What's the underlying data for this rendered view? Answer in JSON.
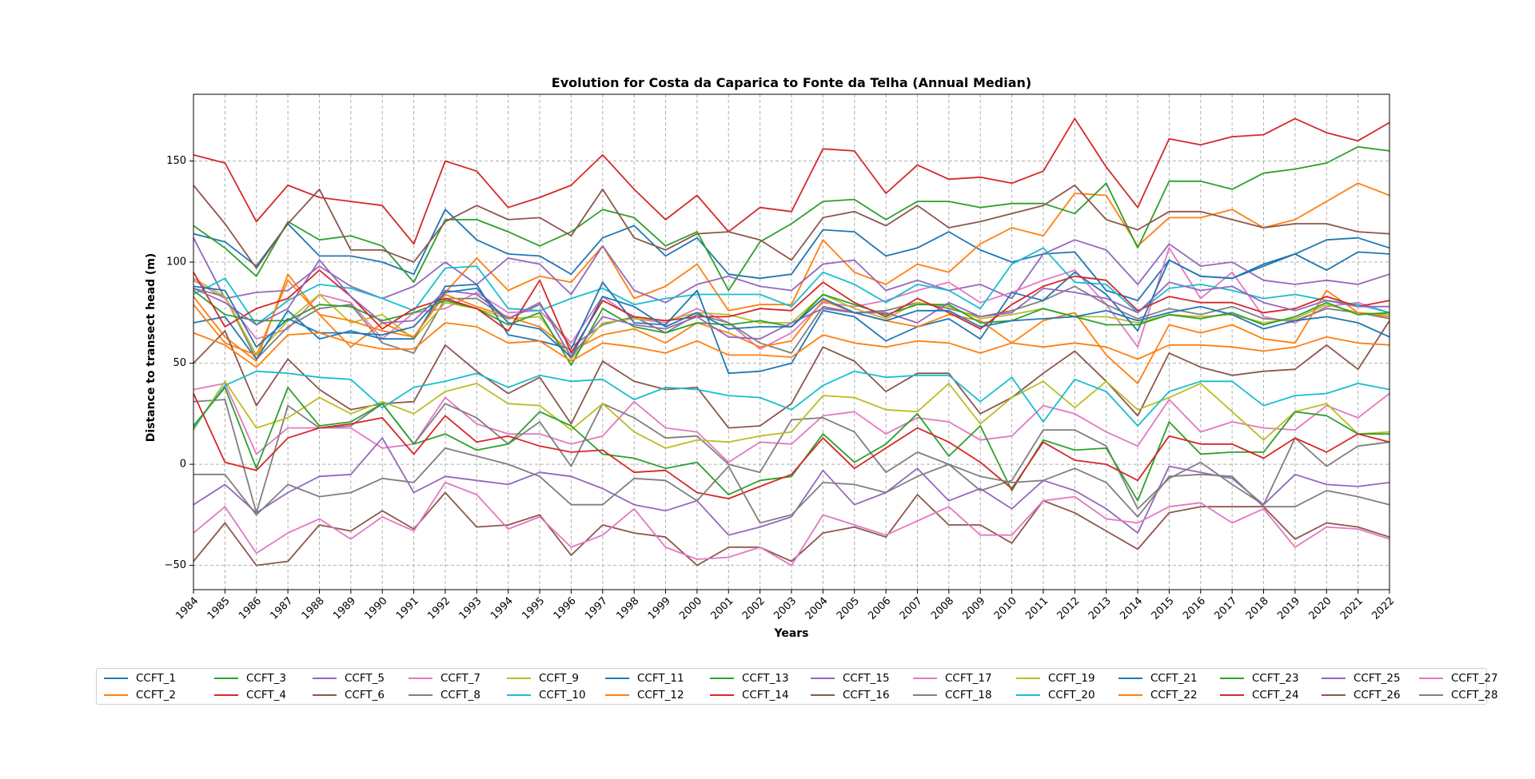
{
  "chart_data": {
    "type": "line",
    "title": "Evolution for Costa da Caparica to Fonte da Telha (Annual Median)",
    "xlabel": "Years",
    "ylabel": "Distance to transect head (m)",
    "ylim": [
      -62,
      183
    ],
    "yticks": [
      -50,
      0,
      50,
      100,
      150
    ],
    "grid": true,
    "legend_position": "bottom",
    "x": [
      1984,
      1985,
      1986,
      1987,
      1988,
      1989,
      1990,
      1991,
      1992,
      1993,
      1994,
      1995,
      1996,
      1997,
      1998,
      1999,
      2000,
      2001,
      2002,
      2003,
      2004,
      2005,
      2006,
      2007,
      2008,
      2009,
      2010,
      2011,
      2012,
      2013,
      2014,
      2015,
      2016,
      2017,
      2018,
      2019,
      2020,
      2021,
      2022
    ],
    "series": [
      {
        "name": "CCFT_1",
        "color": "#1f77b4",
        "values": [
          114,
          110,
          98,
          119,
          103,
          103,
          100,
          94,
          126,
          111,
          104,
          103,
          94,
          112,
          118,
          103,
          112,
          94,
          92,
          94,
          116,
          115,
          103,
          107,
          115,
          106,
          100,
          104,
          105,
          86,
          81,
          101,
          93,
          92,
          99,
          104,
          111,
          112,
          107
        ]
      },
      {
        "name": "CCFT_2",
        "color": "#ff7f0e",
        "values": [
          83,
          63,
          51,
          94,
          74,
          58,
          70,
          63,
          85,
          102,
          86,
          93,
          90,
          108,
          82,
          88,
          99,
          76,
          79,
          79,
          111,
          95,
          89,
          99,
          95,
          109,
          117,
          113,
          134,
          133,
          108,
          122,
          122,
          126,
          117,
          121,
          130,
          139,
          133
        ]
      },
      {
        "name": "CCFT_3",
        "color": "#2ca02c",
        "values": [
          118,
          107,
          93,
          120,
          111,
          113,
          108,
          90,
          121,
          121,
          115,
          108,
          115,
          126,
          122,
          108,
          115,
          86,
          110,
          119,
          130,
          131,
          121,
          130,
          130,
          127,
          129,
          129,
          124,
          139,
          107,
          140,
          140,
          136,
          144,
          146,
          149,
          157,
          155
        ]
      },
      {
        "name": "CCFT_4",
        "color": "#d62728",
        "values": [
          153,
          149,
          120,
          138,
          132,
          130,
          128,
          109,
          150,
          145,
          127,
          132,
          138,
          153,
          136,
          121,
          133,
          115,
          127,
          125,
          156,
          155,
          134,
          148,
          141,
          142,
          139,
          145,
          171,
          147,
          127,
          161,
          158,
          162,
          163,
          171,
          164,
          160,
          169
        ]
      },
      {
        "name": "CCFT_5",
        "color": "#9467bd",
        "values": [
          112,
          82,
          85,
          86,
          98,
          88,
          82,
          88,
          100,
          89,
          102,
          99,
          84,
          108,
          86,
          80,
          89,
          93,
          88,
          86,
          99,
          101,
          86,
          91,
          86,
          89,
          82,
          104,
          111,
          106,
          89,
          109,
          98,
          100,
          91,
          89,
          91,
          89,
          94
        ]
      },
      {
        "name": "CCFT_6",
        "color": "#8c564b",
        "values": [
          138,
          119,
          97,
          119,
          136,
          106,
          106,
          100,
          120,
          128,
          121,
          122,
          113,
          136,
          112,
          106,
          114,
          115,
          111,
          101,
          122,
          125,
          118,
          128,
          117,
          120,
          124,
          128,
          138,
          121,
          116,
          125,
          125,
          121,
          117,
          119,
          119,
          115,
          114
        ]
      },
      {
        "name": "CCFT_7",
        "color": "#e377c2",
        "values": [
          91,
          82,
          62,
          67,
          84,
          80,
          62,
          75,
          77,
          85,
          75,
          76,
          60,
          83,
          72,
          70,
          77,
          70,
          57,
          65,
          80,
          78,
          81,
          86,
          90,
          80,
          85,
          91,
          96,
          79,
          58,
          107,
          82,
          95,
          73,
          70,
          78,
          80,
          75
        ]
      },
      {
        "name": "CCFT_8",
        "color": "#7f7f7f",
        "values": [
          87,
          83,
          52,
          68,
          77,
          79,
          60,
          55,
          82,
          82,
          72,
          79,
          58,
          69,
          73,
          65,
          74,
          70,
          60,
          55,
          78,
          75,
          76,
          80,
          77,
          73,
          76,
          81,
          88,
          79,
          72,
          77,
          74,
          78,
          72,
          71,
          77,
          75,
          72
        ]
      },
      {
        "name": "CCFT_9",
        "color": "#bcbd22",
        "values": [
          92,
          83,
          54,
          71,
          84,
          70,
          74,
          62,
          80,
          77,
          72,
          73,
          52,
          70,
          72,
          71,
          75,
          74,
          70,
          70,
          84,
          77,
          72,
          80,
          78,
          72,
          74,
          77,
          73,
          73,
          70,
          74,
          73,
          74,
          70,
          72,
          79,
          75,
          74
        ]
      },
      {
        "name": "CCFT_10",
        "color": "#17becf",
        "values": [
          84,
          92,
          69,
          81,
          89,
          87,
          82,
          76,
          97,
          98,
          77,
          76,
          82,
          87,
          79,
          82,
          84,
          84,
          84,
          78,
          95,
          89,
          80,
          89,
          86,
          77,
          99,
          107,
          90,
          89,
          75,
          87,
          89,
          86,
          82,
          84,
          81,
          79,
          75
        ]
      },
      {
        "name": "CCFT_11",
        "color": "#1f77b4",
        "values": [
          70,
          73,
          52,
          76,
          62,
          66,
          62,
          62,
          88,
          89,
          64,
          61,
          57,
          90,
          70,
          69,
          86,
          45,
          46,
          50,
          76,
          73,
          61,
          68,
          72,
          62,
          85,
          81,
          95,
          84,
          66,
          101,
          93,
          92,
          98,
          104,
          96,
          105,
          104
        ]
      },
      {
        "name": "CCFT_12",
        "color": "#ff7f0e",
        "values": [
          79,
          60,
          54,
          91,
          74,
          71,
          66,
          63,
          84,
          78,
          73,
          68,
          56,
          64,
          67,
          60,
          70,
          65,
          58,
          61,
          81,
          75,
          71,
          68,
          74,
          71,
          60,
          71,
          75,
          54,
          40,
          69,
          65,
          69,
          62,
          60,
          86,
          75,
          73
        ]
      },
      {
        "name": "CCFT_13",
        "color": "#2ca02c",
        "values": [
          86,
          74,
          71,
          71,
          79,
          78,
          71,
          75,
          81,
          77,
          69,
          75,
          49,
          77,
          68,
          65,
          70,
          69,
          71,
          68,
          84,
          79,
          74,
          79,
          79,
          70,
          71,
          77,
          73,
          69,
          69,
          74,
          72,
          75,
          69,
          73,
          80,
          74,
          75
        ]
      },
      {
        "name": "CCFT_14",
        "color": "#d62728",
        "values": [
          95,
          68,
          77,
          82,
          96,
          83,
          67,
          77,
          82,
          77,
          66,
          91,
          55,
          81,
          73,
          71,
          73,
          73,
          77,
          76,
          90,
          80,
          73,
          82,
          75,
          67,
          79,
          88,
          93,
          91,
          76,
          83,
          80,
          80,
          75,
          77,
          83,
          78,
          81
        ]
      },
      {
        "name": "CCFT_15",
        "color": "#9467bd",
        "values": [
          87,
          80,
          69,
          77,
          101,
          83,
          70,
          71,
          86,
          84,
          72,
          80,
          53,
          73,
          69,
          67,
          73,
          63,
          62,
          70,
          77,
          75,
          75,
          70,
          80,
          73,
          75,
          87,
          85,
          82,
          75,
          90,
          86,
          88,
          80,
          76,
          81,
          78,
          78
        ]
      },
      {
        "name": "CCFT_16",
        "color": "#8c564b",
        "values": [
          50,
          66,
          29,
          52,
          37,
          27,
          30,
          31,
          59,
          46,
          35,
          43,
          20,
          51,
          41,
          37,
          38,
          18,
          19,
          30,
          58,
          51,
          36,
          45,
          45,
          25,
          33,
          45,
          56,
          41,
          24,
          55,
          48,
          44,
          46,
          47,
          59,
          47,
          71
        ]
      },
      {
        "name": "CCFT_17",
        "color": "#e377c2",
        "values": [
          37,
          40,
          5,
          18,
          18,
          18,
          8,
          10,
          33,
          20,
          15,
          15,
          10,
          14,
          31,
          18,
          16,
          1,
          11,
          10,
          24,
          26,
          15,
          23,
          21,
          12,
          14,
          29,
          25,
          16,
          9,
          32,
          16,
          21,
          18,
          17,
          29,
          23,
          35
        ]
      },
      {
        "name": "CCFT_18",
        "color": "#7f7f7f",
        "values": [
          31,
          32,
          -24,
          29,
          18,
          19,
          30,
          10,
          30,
          23,
          10,
          21,
          -1,
          30,
          23,
          13,
          14,
          0,
          -4,
          22,
          23,
          16,
          -4,
          6,
          0,
          -13,
          -8,
          17,
          17,
          9,
          -22,
          -7,
          1,
          -10,
          -20,
          13,
          -1,
          9,
          11
        ]
      },
      {
        "name": "CCFT_19",
        "color": "#bcbd22",
        "values": [
          17,
          41,
          18,
          23,
          33,
          25,
          31,
          25,
          36,
          40,
          30,
          29,
          17,
          30,
          16,
          8,
          12,
          11,
          14,
          16,
          34,
          33,
          27,
          26,
          40,
          20,
          33,
          41,
          28,
          41,
          27,
          33,
          40,
          26,
          12,
          26,
          30,
          15,
          16
        ]
      },
      {
        "name": "CCFT_20",
        "color": "#17becf",
        "values": [
          18,
          39,
          46,
          45,
          43,
          42,
          28,
          38,
          41,
          45,
          38,
          44,
          41,
          42,
          32,
          38,
          37,
          34,
          33,
          27,
          39,
          46,
          43,
          44,
          44,
          31,
          43,
          21,
          42,
          36,
          19,
          36,
          41,
          41,
          29,
          34,
          35,
          40,
          37
        ]
      },
      {
        "name": "CCFT_21",
        "color": "#1f77b4",
        "values": [
          88,
          86,
          58,
          72,
          65,
          65,
          64,
          68,
          85,
          87,
          70,
          67,
          53,
          83,
          78,
          68,
          75,
          67,
          68,
          68,
          82,
          75,
          71,
          76,
          76,
          68,
          71,
          72,
          73,
          76,
          71,
          75,
          78,
          74,
          67,
          71,
          73,
          70,
          63
        ]
      },
      {
        "name": "CCFT_22",
        "color": "#ff7f0e",
        "values": [
          65,
          59,
          48,
          64,
          65,
          60,
          57,
          57,
          70,
          68,
          60,
          61,
          51,
          60,
          58,
          55,
          61,
          54,
          54,
          53,
          64,
          60,
          58,
          61,
          60,
          55,
          60,
          58,
          60,
          58,
          52,
          59,
          59,
          58,
          56,
          58,
          63,
          60,
          59
        ]
      },
      {
        "name": "CCFT_23",
        "color": "#2ca02c",
        "values": [
          19,
          38,
          -2,
          38,
          19,
          21,
          30,
          10,
          15,
          7,
          10,
          26,
          19,
          5,
          3,
          -2,
          1,
          -15,
          -8,
          -6,
          15,
          1,
          10,
          25,
          4,
          19,
          -13,
          12,
          7,
          8,
          -18,
          21,
          5,
          6,
          6,
          26,
          24,
          15,
          15
        ]
      },
      {
        "name": "CCFT_24",
        "color": "#d62728",
        "values": [
          35,
          1,
          -3,
          13,
          18,
          20,
          23,
          5,
          24,
          11,
          14,
          9,
          6,
          7,
          -4,
          -3,
          -14,
          -17,
          -11,
          -5,
          13,
          -2,
          8,
          18,
          11,
          1,
          -12,
          11,
          2,
          0,
          -8,
          14,
          10,
          10,
          3,
          13,
          6,
          15,
          11
        ]
      },
      {
        "name": "CCFT_25",
        "color": "#9467bd",
        "values": [
          -20,
          -10,
          -24,
          -14,
          -6,
          -5,
          13,
          -14,
          -6,
          -8,
          -10,
          -4,
          -6,
          -12,
          -20,
          -23,
          -18,
          -35,
          -31,
          -26,
          -3,
          -20,
          -14,
          -2,
          -18,
          -12,
          -22,
          -8,
          -13,
          -22,
          -34,
          -1,
          -4,
          -7,
          -20,
          -5,
          -10,
          -11,
          -9
        ]
      },
      {
        "name": "CCFT_26",
        "color": "#8c564b",
        "values": [
          -48,
          -29,
          -50,
          -48,
          -30,
          -33,
          -23,
          -32,
          -14,
          -31,
          -30,
          -25,
          -45,
          -30,
          -34,
          -36,
          -50,
          -41,
          -41,
          -48,
          -34,
          -31,
          -36,
          -15,
          -30,
          -30,
          -39,
          -18,
          -24,
          -33,
          -42,
          -24,
          -21,
          -21,
          -21,
          -37,
          -29,
          -31,
          -36
        ]
      },
      {
        "name": "CCFT_27",
        "color": "#e377c2",
        "values": [
          -34,
          -21,
          -44,
          -34,
          -27,
          -37,
          -26,
          -33,
          -9,
          -15,
          -32,
          -26,
          -41,
          -35,
          -22,
          -41,
          -47,
          -46,
          -41,
          -50,
          -25,
          -30,
          -35,
          -28,
          -21,
          -35,
          -35,
          -18,
          -16,
          -27,
          -29,
          -21,
          -19,
          -29,
          -22,
          -41,
          -31,
          -32,
          -37
        ]
      },
      {
        "name": "CCFT_28",
        "color": "#7f7f7f",
        "values": [
          -5,
          -5,
          -25,
          -10,
          -16,
          -14,
          -7,
          -9,
          8,
          4,
          0,
          -6,
          -20,
          -20,
          -7,
          -8,
          -18,
          -1,
          -29,
          -25,
          -9,
          -10,
          -14,
          -6,
          0,
          -6,
          -9,
          -8,
          -2,
          -9,
          -26,
          -6,
          -5,
          -6,
          -21,
          -21,
          -13,
          -16,
          -20
        ]
      }
    ]
  }
}
